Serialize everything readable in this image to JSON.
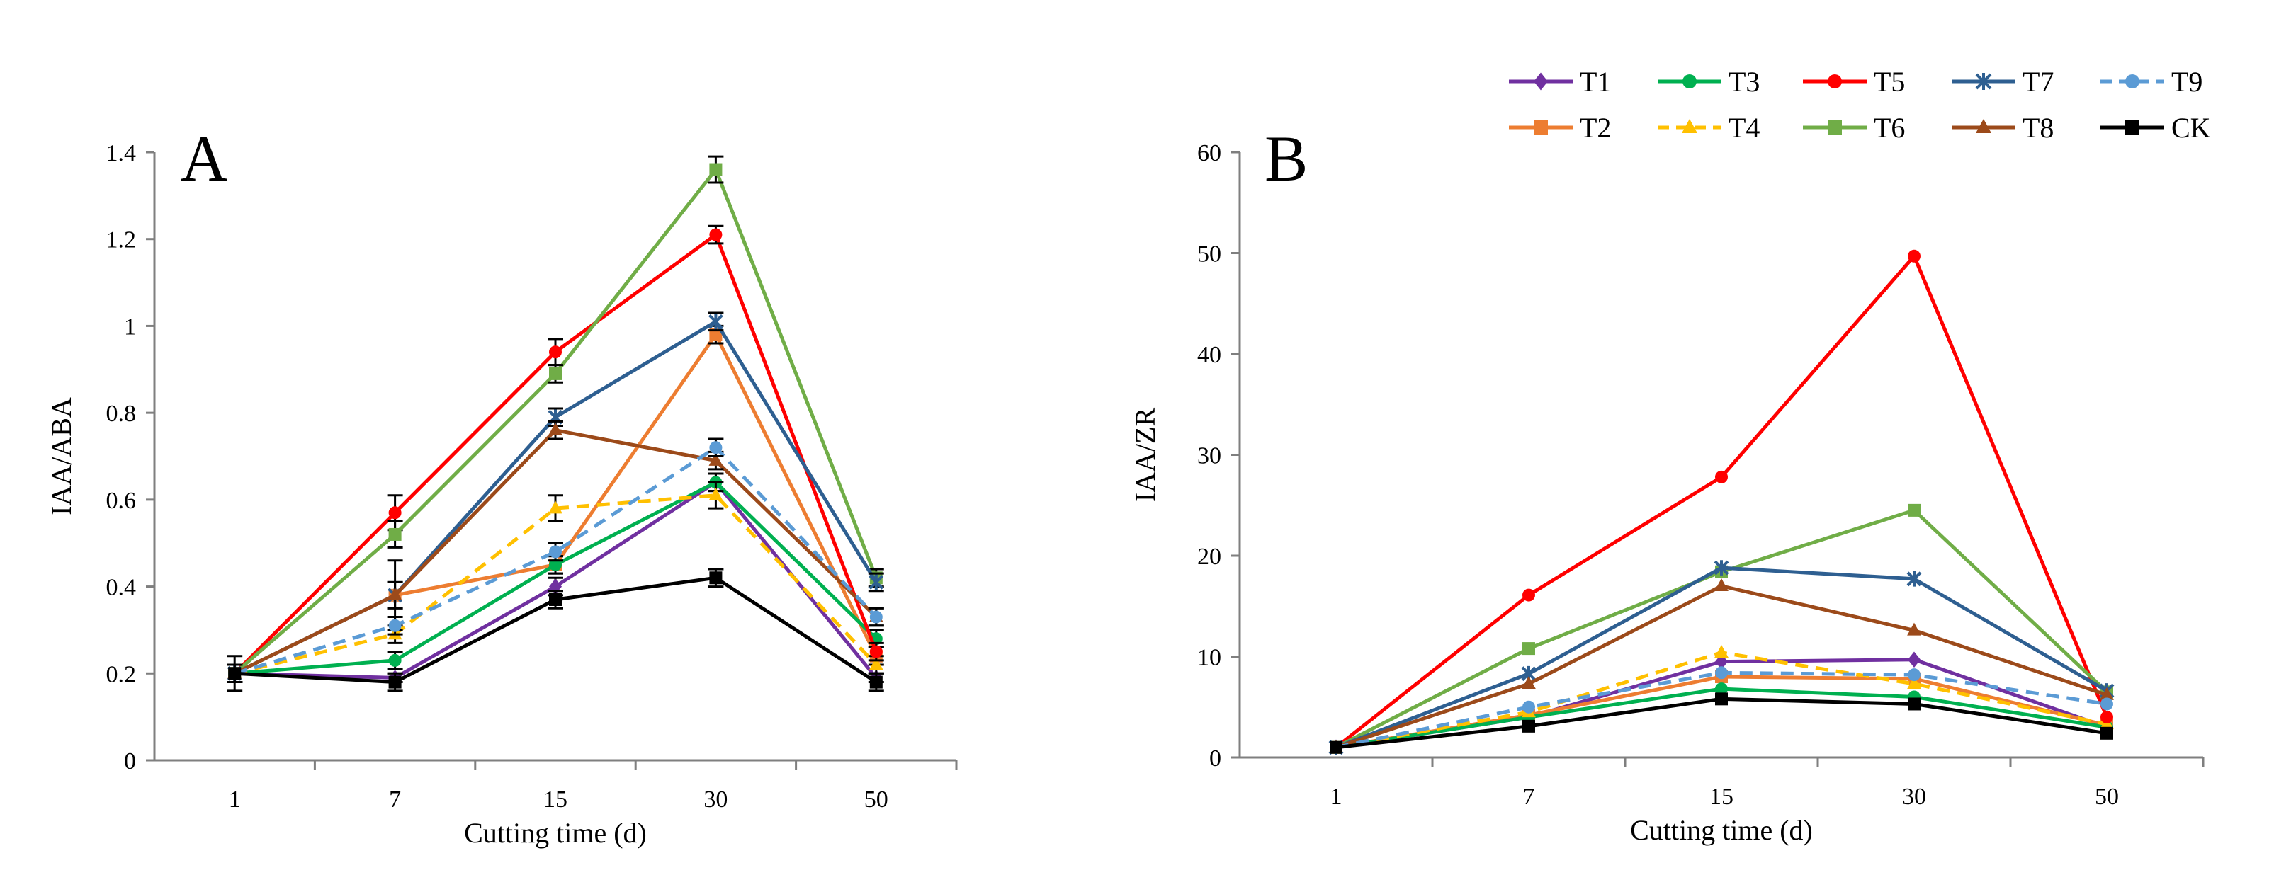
{
  "chart_data": [
    {
      "panel": "A",
      "type": "line",
      "xlabel": "Cutting time (d)",
      "ylabel": "IAA/ABA",
      "categories": [
        "1",
        "7",
        "15",
        "30",
        "50"
      ],
      "ylim": [
        0,
        1.4
      ],
      "yticks": [
        0,
        0.2,
        0.4,
        0.6,
        0.8,
        1,
        1.2,
        1.4
      ],
      "ytick_labels": [
        "0",
        "0.2",
        "0.4",
        "0.6",
        "0.8",
        "1",
        "1.2",
        "1.4"
      ],
      "error_bars": true,
      "series": [
        {
          "name": "T1",
          "values": [
            0.2,
            0.19,
            0.4,
            0.64,
            0.19
          ],
          "errors": [
            0.02,
            0.01,
            0.02,
            0.02,
            0.01
          ]
        },
        {
          "name": "T2",
          "values": [
            0.2,
            0.38,
            0.45,
            0.98,
            0.24
          ],
          "errors": [
            0.02,
            0.03,
            0.02,
            0.02,
            0.02
          ]
        },
        {
          "name": "T3",
          "values": [
            0.2,
            0.23,
            0.45,
            0.64,
            0.28
          ],
          "errors": [
            0.02,
            0.02,
            0.02,
            0.02,
            0.02
          ]
        },
        {
          "name": "T4",
          "values": [
            0.2,
            0.29,
            0.58,
            0.61,
            0.22
          ],
          "errors": [
            0.02,
            0.02,
            0.03,
            0.03,
            0.02
          ]
        },
        {
          "name": "T5",
          "values": [
            0.2,
            0.57,
            0.94,
            1.21,
            0.25
          ],
          "errors": [
            0.02,
            0.04,
            0.03,
            0.02,
            0.02
          ]
        },
        {
          "name": "T6",
          "values": [
            0.2,
            0.52,
            0.89,
            1.36,
            0.42
          ],
          "errors": [
            0.02,
            0.03,
            0.02,
            0.03,
            0.02
          ]
        },
        {
          "name": "T7",
          "values": [
            0.2,
            0.38,
            0.79,
            1.01,
            0.41
          ],
          "errors": [
            0.02,
            0.08,
            0.02,
            0.02,
            0.02
          ]
        },
        {
          "name": "T8",
          "values": [
            0.2,
            0.38,
            0.76,
            0.69,
            0.33
          ],
          "errors": [
            0.02,
            0.03,
            0.02,
            0.02,
            0.02
          ]
        },
        {
          "name": "T9",
          "values": [
            0.2,
            0.31,
            0.48,
            0.72,
            0.33
          ],
          "errors": [
            0.02,
            0.02,
            0.02,
            0.02,
            0.02
          ]
        },
        {
          "name": "CK",
          "values": [
            0.2,
            0.18,
            0.37,
            0.42,
            0.18
          ],
          "errors": [
            0.04,
            0.02,
            0.02,
            0.02,
            0.02
          ]
        }
      ]
    },
    {
      "panel": "B",
      "type": "line",
      "xlabel": "Cutting time (d)",
      "ylabel": "IAA/ZR",
      "categories": [
        "1",
        "7",
        "15",
        "30",
        "50"
      ],
      "ylim": [
        0,
        60
      ],
      "yticks": [
        0,
        10,
        20,
        30,
        40,
        50,
        60
      ],
      "ytick_labels": [
        "0",
        "10",
        "20",
        "30",
        "40",
        "50",
        "60"
      ],
      "error_bars": false,
      "series": [
        {
          "name": "T1",
          "values": [
            1.0,
            4.0,
            9.5,
            9.7,
            3.0
          ]
        },
        {
          "name": "T2",
          "values": [
            1.0,
            4.2,
            8.0,
            7.8,
            3.2
          ]
        },
        {
          "name": "T3",
          "values": [
            1.0,
            4.0,
            6.8,
            6.0,
            3.0
          ]
        },
        {
          "name": "T4",
          "values": [
            1.0,
            4.5,
            10.4,
            7.3,
            3.3
          ]
        },
        {
          "name": "T5",
          "values": [
            1.0,
            16.1,
            27.8,
            49.7,
            4.0
          ]
        },
        {
          "name": "T6",
          "values": [
            1.0,
            10.8,
            18.4,
            24.5,
            6.5
          ]
        },
        {
          "name": "T7",
          "values": [
            1.0,
            8.3,
            18.8,
            17.7,
            6.6
          ]
        },
        {
          "name": "T8",
          "values": [
            1.0,
            7.3,
            17.0,
            12.6,
            6.2
          ]
        },
        {
          "name": "T9",
          "values": [
            1.0,
            5.0,
            8.4,
            8.2,
            5.3
          ]
        },
        {
          "name": "CK",
          "values": [
            1.0,
            3.1,
            5.8,
            5.3,
            2.4
          ]
        }
      ]
    }
  ],
  "legend": {
    "placement": "top-right",
    "items": [
      {
        "name": "T1",
        "color": "#7030a0",
        "marker": "diamond",
        "dash": "solid"
      },
      {
        "name": "T2",
        "color": "#ed7d31",
        "marker": "square",
        "dash": "solid"
      },
      {
        "name": "T3",
        "color": "#00b050",
        "marker": "circle",
        "dash": "solid"
      },
      {
        "name": "T4",
        "color": "#ffc000",
        "marker": "triangle",
        "dash": "dashed"
      },
      {
        "name": "T5",
        "color": "#ff0000",
        "marker": "circle",
        "dash": "solid"
      },
      {
        "name": "T6",
        "color": "#70ad47",
        "marker": "square",
        "dash": "solid"
      },
      {
        "name": "T7",
        "color": "#2e5f91",
        "marker": "star",
        "dash": "solid"
      },
      {
        "name": "T8",
        "color": "#9c4a1a",
        "marker": "triangle",
        "dash": "solid"
      },
      {
        "name": "T9",
        "color": "#5b9bd5",
        "marker": "circle",
        "dash": "dashed"
      },
      {
        "name": "CK",
        "color": "#000000",
        "marker": "square",
        "dash": "solid"
      }
    ]
  }
}
